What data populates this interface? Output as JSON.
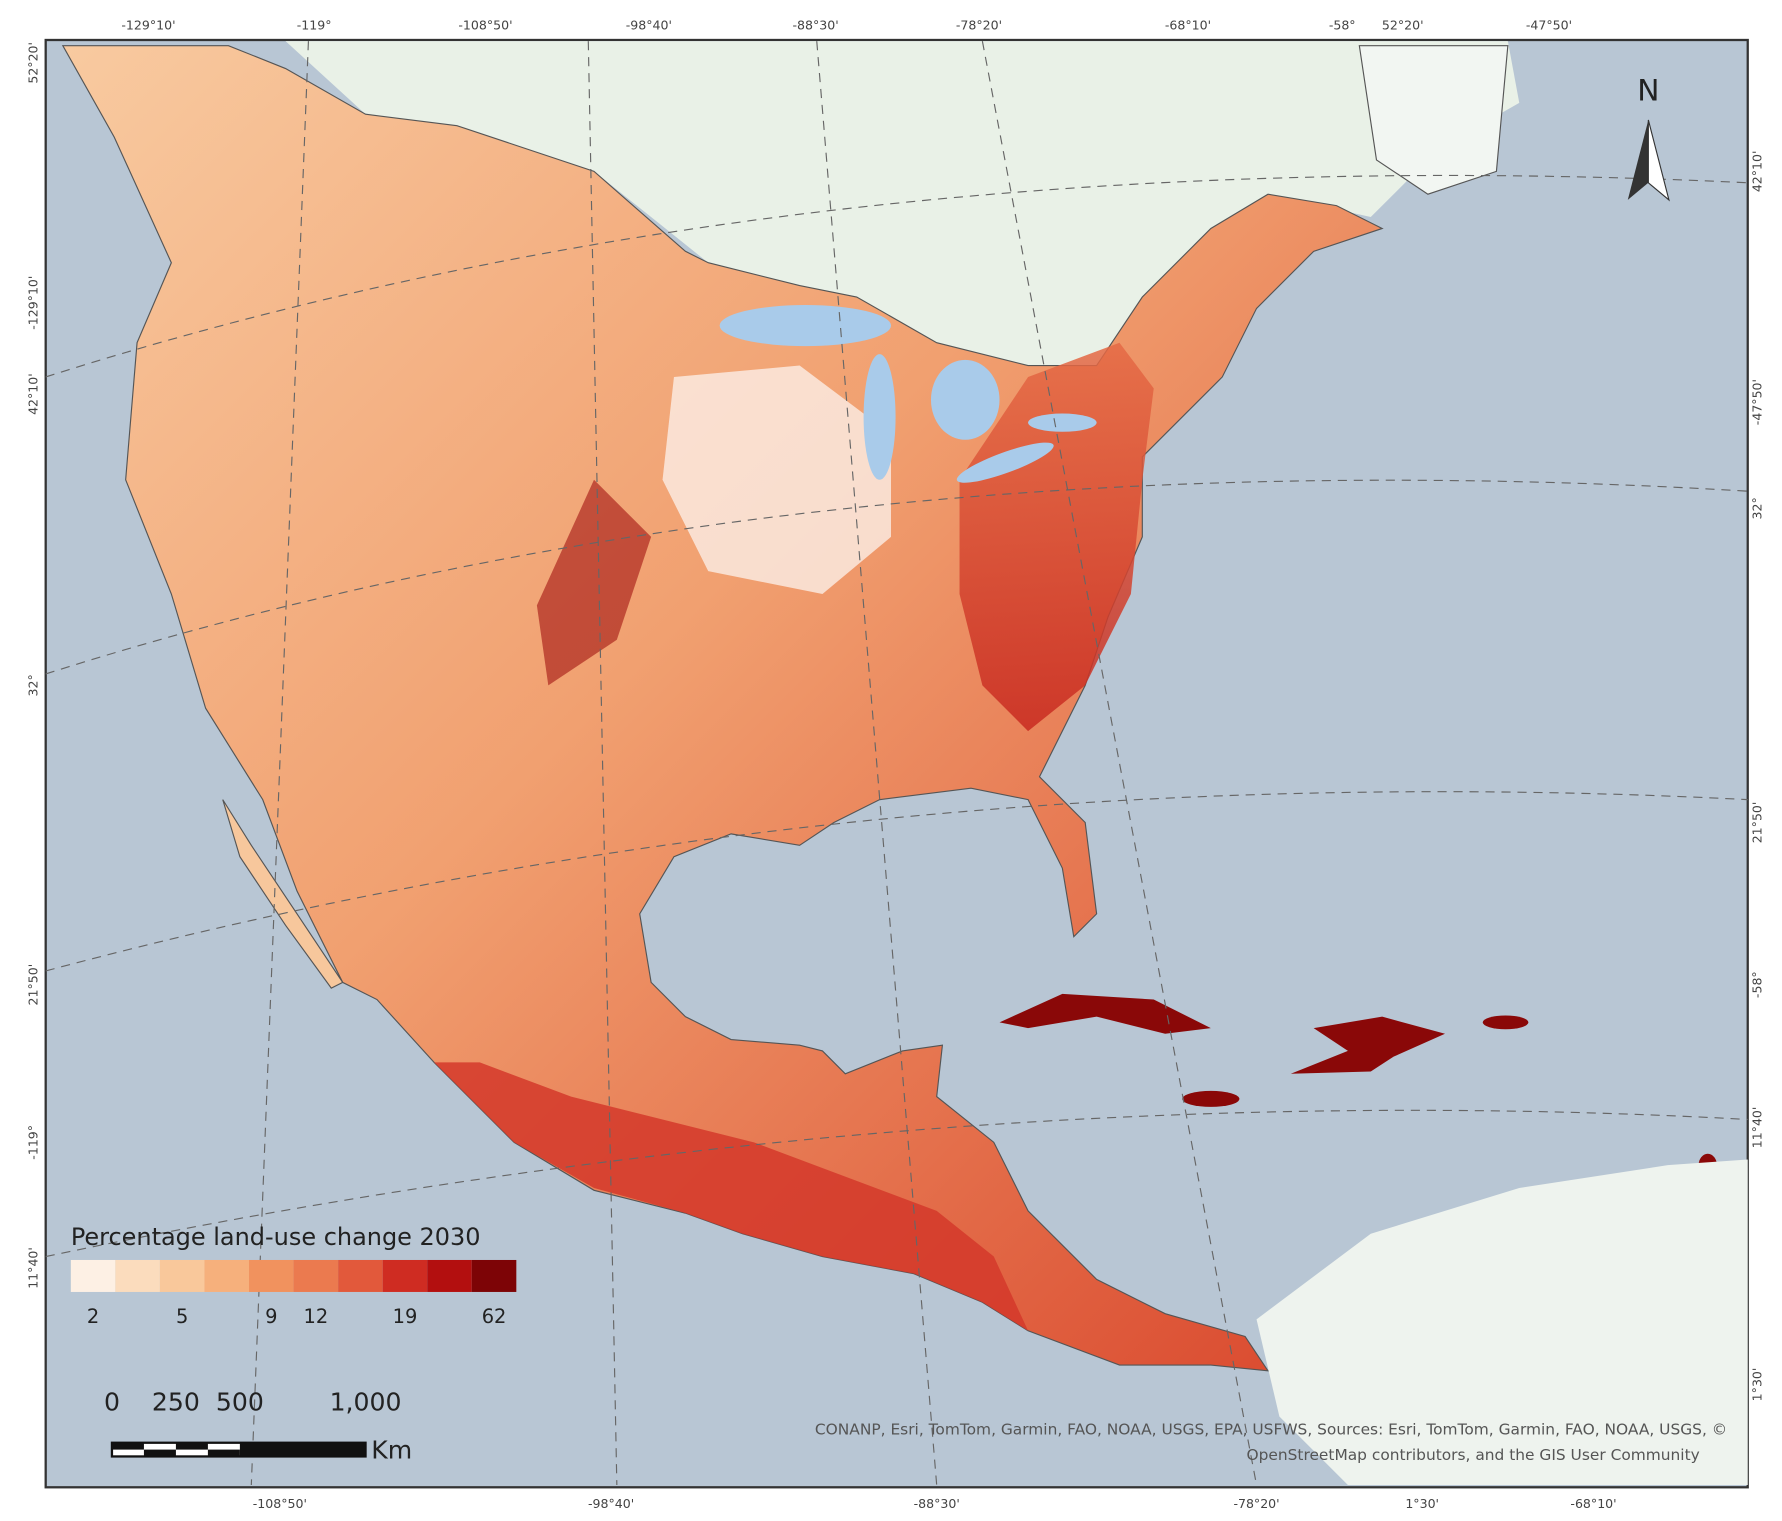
{
  "map": {
    "graticule_labels": {
      "top": [
        "-129°10'",
        "-119°",
        "-108°50'",
        "-98°40'",
        "-88°30'",
        "-78°20'",
        "-68°10'",
        "-58°",
        "52°20'",
        "-47°50'"
      ],
      "bottom": [
        "-108°50'",
        "-98°40'",
        "-88°30'",
        "-78°20'",
        "1°30'",
        "-68°10'"
      ],
      "left": [
        "52°20'",
        "-129°10'",
        "42°10'",
        "32°",
        "21°50'",
        "-119°",
        "11°40'"
      ],
      "right": [
        "42°10'",
        "-47°50'",
        "32°",
        "21°50'",
        "-58°",
        "11°40'",
        "1°30'"
      ]
    },
    "north_arrow": "N",
    "legend": {
      "title": "Percentage land-use change 2030",
      "classes": [
        {
          "color": "#fdf0e4",
          "label": 2
        },
        {
          "color": "#fbdcbd",
          "label": null
        },
        {
          "color": "#f9c89b",
          "label": 5
        },
        {
          "color": "#f6b07c",
          "label": null
        },
        {
          "color": "#f1925e",
          "label": 9
        },
        {
          "color": "#eb7a4f",
          "label": 12
        },
        {
          "color": "#e2593b",
          "label": null
        },
        {
          "color": "#cf2c22",
          "label": 19
        },
        {
          "color": "#b30f0f",
          "label": null
        },
        {
          "color": "#7d0406",
          "label": 62
        }
      ]
    },
    "scale_bar": {
      "labels": [
        "0",
        "250",
        "500",
        "1,000"
      ],
      "unit": "Km"
    },
    "attribution": [
      "CONANP, Esri, TomTom, Garmin, FAO, NOAA, USGS, EPA, USFWS, Sources: Esri, TomTom, Garmin, FAO, NOAA, USGS, ©",
      "OpenStreetMap contributors, and the GIS User Community"
    ]
  }
}
